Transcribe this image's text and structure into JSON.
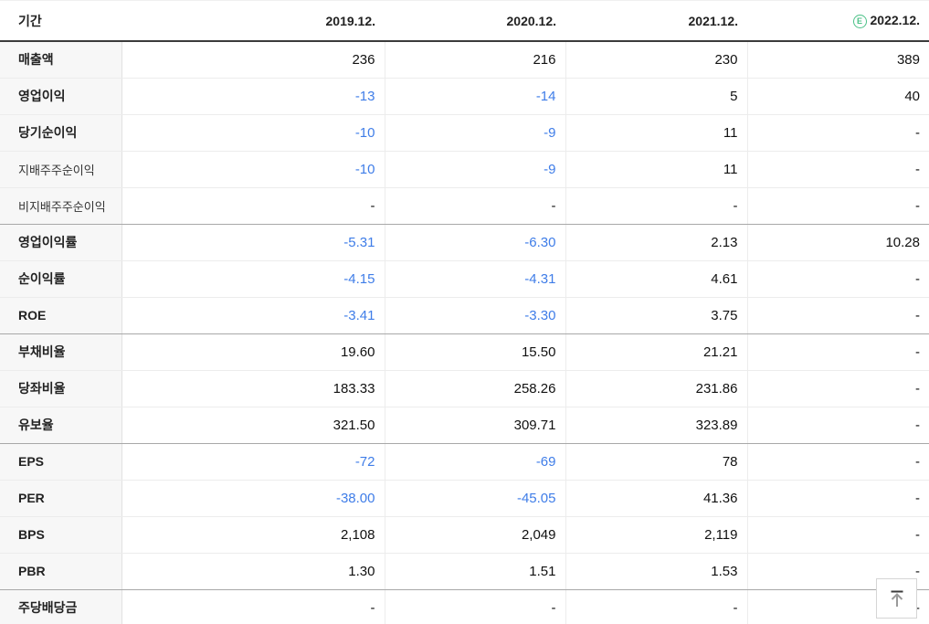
{
  "colors": {
    "negative_value": "#3f7de8",
    "estimate_badge_green": "#4bc187",
    "header_border": "#3b3b3b",
    "label_column_bg": "#f7f7f7"
  },
  "table": {
    "header": {
      "period_label": "기간",
      "columns": [
        "2019.12.",
        "2020.12.",
        "2021.12.",
        "2022.12."
      ],
      "estimate_badge": "E"
    },
    "rows": [
      {
        "label": "매출액",
        "sub": false,
        "group_end": false,
        "values": [
          "236",
          "216",
          "230",
          "389"
        ]
      },
      {
        "label": "영업이익",
        "sub": false,
        "group_end": false,
        "values": [
          "-13",
          "-14",
          "5",
          "40"
        ]
      },
      {
        "label": "당기순이익",
        "sub": false,
        "group_end": false,
        "values": [
          "-10",
          "-9",
          "11",
          "-"
        ]
      },
      {
        "label": "지배주주순이익",
        "sub": true,
        "group_end": false,
        "values": [
          "-10",
          "-9",
          "11",
          "-"
        ]
      },
      {
        "label": "비지배주주순이익",
        "sub": true,
        "group_end": true,
        "values": [
          "-",
          "-",
          "-",
          "-"
        ]
      },
      {
        "label": "영업이익률",
        "sub": false,
        "group_end": false,
        "values": [
          "-5.31",
          "-6.30",
          "2.13",
          "10.28"
        ]
      },
      {
        "label": "순이익률",
        "sub": false,
        "group_end": false,
        "values": [
          "-4.15",
          "-4.31",
          "4.61",
          "-"
        ]
      },
      {
        "label": "ROE",
        "sub": false,
        "group_end": true,
        "values": [
          "-3.41",
          "-3.30",
          "3.75",
          "-"
        ]
      },
      {
        "label": "부채비율",
        "sub": false,
        "group_end": false,
        "values": [
          "19.60",
          "15.50",
          "21.21",
          "-"
        ]
      },
      {
        "label": "당좌비율",
        "sub": false,
        "group_end": false,
        "values": [
          "183.33",
          "258.26",
          "231.86",
          "-"
        ]
      },
      {
        "label": "유보율",
        "sub": false,
        "group_end": true,
        "values": [
          "321.50",
          "309.71",
          "323.89",
          "-"
        ]
      },
      {
        "label": "EPS",
        "sub": false,
        "group_end": false,
        "values": [
          "-72",
          "-69",
          "78",
          "-"
        ]
      },
      {
        "label": "PER",
        "sub": false,
        "group_end": false,
        "values": [
          "-38.00",
          "-45.05",
          "41.36",
          "-"
        ]
      },
      {
        "label": "BPS",
        "sub": false,
        "group_end": false,
        "values": [
          "2,108",
          "2,049",
          "2,119",
          "-"
        ]
      },
      {
        "label": "PBR",
        "sub": false,
        "group_end": true,
        "values": [
          "1.30",
          "1.51",
          "1.53",
          "-"
        ]
      },
      {
        "label": "주당배당금",
        "sub": false,
        "group_end": false,
        "values": [
          "-",
          "-",
          "-",
          "-"
        ]
      }
    ]
  },
  "scroll_top": {
    "icon": "arrow-up-to-line-icon"
  }
}
